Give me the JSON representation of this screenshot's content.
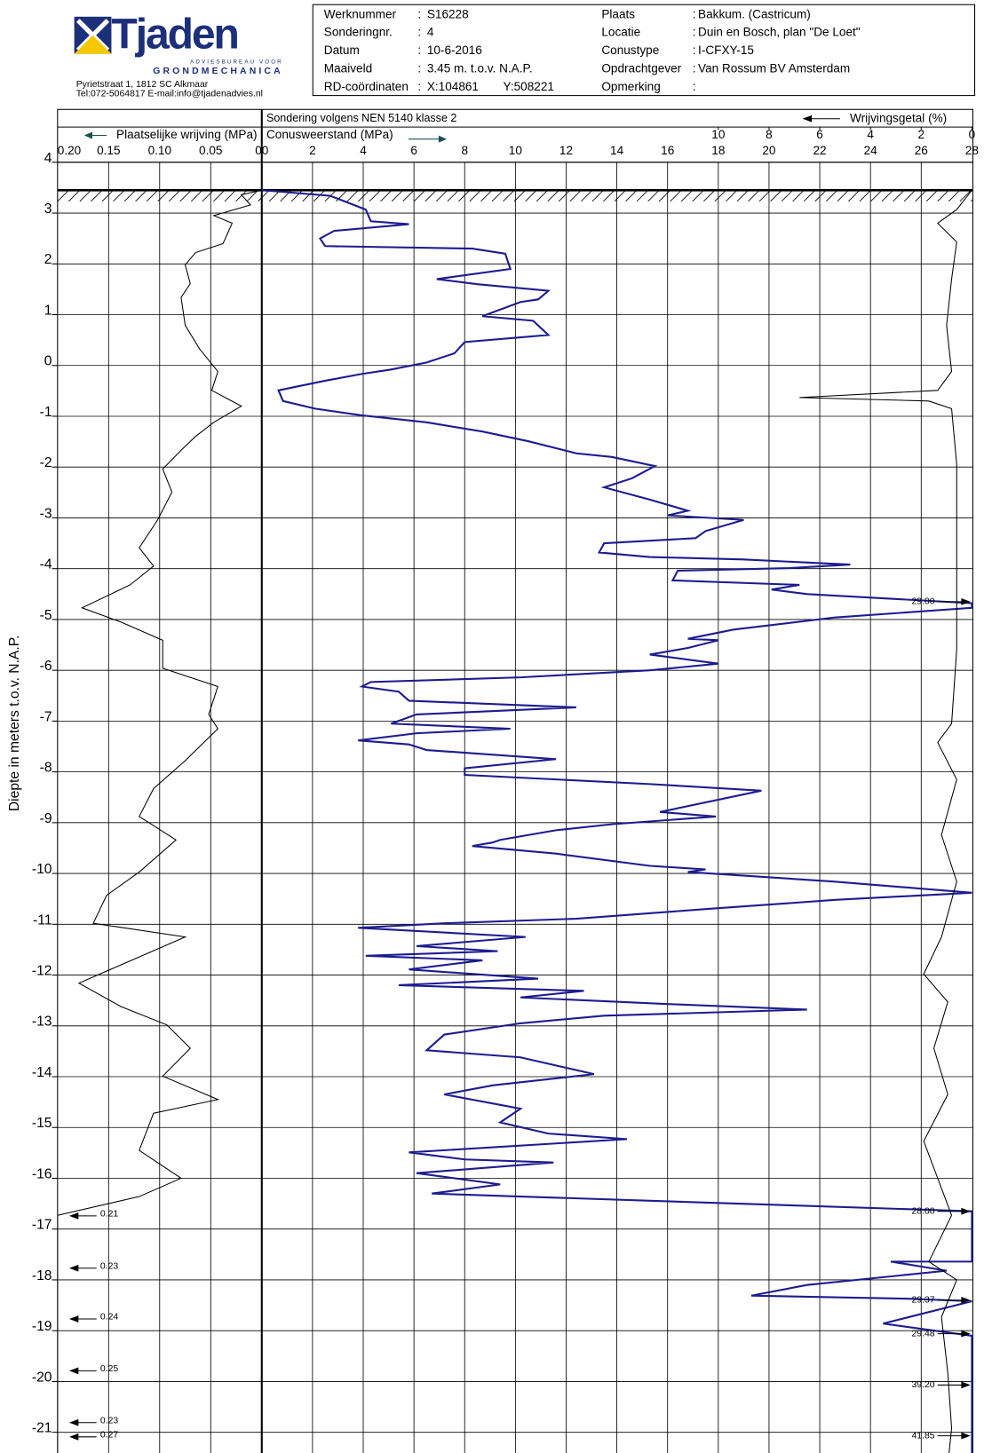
{
  "header": {
    "logo": "Tjaden",
    "tagline": "ADVIESBUREAU VOOR",
    "division": "GRONDMECHANICA",
    "address": "Pyrietstraat 1, 1812 SC Alkmaar",
    "contact": "Tel:072-5064817 E-mail:info@tjadenadvies.nl",
    "separator": ":",
    "fields": [
      {
        "label": "Werknummer",
        "value": "S16228"
      },
      {
        "label": "Sonderingnr.",
        "value": "4"
      },
      {
        "label": "Datum",
        "value": "10-6-2016"
      },
      {
        "label": "Maaiveld",
        "value": "3.45  m.  t.o.v. N.A.P."
      },
      {
        "label": "RD-coördinaten",
        "value": "X:104861",
        "value_y": "Y:508221"
      },
      {
        "label": "Plaats",
        "value": "Bakkum. (Castricum)"
      },
      {
        "label": "Locatie",
        "value": "Duin en Bosch, plan \"De Loet\""
      },
      {
        "label": "Conustype",
        "value": "I-CFXY-15"
      },
      {
        "label": "Opdrachtgever",
        "value": "Van Rossum BV Amsterdam"
      },
      {
        "label": "Opmerking"
      }
    ]
  },
  "chart_data": {
    "type": "line",
    "title": "Sondering volgens NEN 5140 klasse 2",
    "ylabel": "Diepte in meters t.o.v. N.A.P.",
    "ylim": [
      -21.7,
      4
    ],
    "yticks": [
      4,
      3,
      2,
      1,
      0,
      -1,
      -2,
      -3,
      -4,
      -5,
      -6,
      -7,
      -8,
      -9,
      -10,
      -11,
      -12,
      -13,
      -14,
      -15,
      -16,
      -17,
      -18,
      -19,
      -20,
      -21
    ],
    "grid": true,
    "ground_level": 3.45,
    "axes": {
      "friction": {
        "xlim": [
          0.2,
          0
        ],
        "xticks": [
          {
            "value": 0.2,
            "label": "0.20"
          },
          0.15,
          {
            "value": 0.1,
            "label": "0.10"
          },
          0.05,
          0
        ]
      },
      "cone": {
        "xlim": [
          0,
          28
        ],
        "xticks": [
          0,
          2,
          4,
          6,
          8,
          10,
          12,
          14,
          16,
          18,
          20,
          22,
          24,
          26,
          28
        ]
      },
      "ratio": {
        "xlim": [
          28,
          0
        ],
        "xticks": [
          10,
          8,
          6,
          4,
          2,
          0
        ]
      }
    },
    "series": [
      {
        "name": "Plaatselijke wrijving (MPa)",
        "axis": "friction",
        "color": "#000000",
        "values": [
          0,
          0.02,
          0.011,
          0.047,
          0.029,
          0.038,
          0.065,
          0.075,
          0.07,
          0.079,
          0.075,
          0.061,
          0.043,
          0.049,
          0.02,
          0.047,
          0.065,
          0.079,
          0.097,
          0.088,
          0.102,
          0.12,
          0.106,
          0.129,
          0.176,
          0.138,
          0.097,
          0.097,
          0.043,
          0.052,
          0.043,
          0.075,
          0.106,
          0.12,
          0.084,
          0.12,
          0.152,
          0.165,
          0.075,
          0.138,
          0.179,
          0.138,
          0.093,
          0.07,
          0.097,
          0.043,
          0.106,
          0.12,
          0.079,
          0.12,
          0.2,
          0.2
        ],
        "depth": [
          3.45,
          3.36,
          3.16,
          2.95,
          2.8,
          2.4,
          2.22,
          1.98,
          1.61,
          1.34,
          0.79,
          0.33,
          -0.12,
          -0.49,
          -0.8,
          -1.12,
          -1.4,
          -1.67,
          -2.04,
          -2.49,
          -3.04,
          -3.59,
          -3.95,
          -4.32,
          -4.77,
          -5.05,
          -5.41,
          -5.96,
          -6.32,
          -6.87,
          -7.15,
          -7.78,
          -8.33,
          -8.88,
          -9.34,
          -9.97,
          -10.43,
          -10.98,
          -11.25,
          -11.8,
          -12.16,
          -12.62,
          -12.98,
          -13.44,
          -13.99,
          -14.45,
          -14.72,
          -15.45,
          -16.0,
          -16.36,
          -16.73,
          -21.65
        ]
      },
      {
        "name": "Conusweerstand (MPa)",
        "axis": "cone",
        "color": "#1c1c8f",
        "values": [
          0,
          2.7,
          4.1,
          4.3,
          5.8,
          2.85,
          2.3,
          2.5,
          8.3,
          9.6,
          9.8,
          6.9,
          8.5,
          11.3,
          10.9,
          10.2,
          8.7,
          10.7,
          11.3,
          8.0,
          7.6,
          6.5,
          5.1,
          3.9,
          2.5,
          0.66,
          0.84,
          2.1,
          3.9,
          6.5,
          8.7,
          10.5,
          12.4,
          13.8,
          15.5,
          14.6,
          13.5,
          15.3,
          16.8,
          16.0,
          19.0,
          17.5,
          17.1,
          13.5,
          13.3,
          15.3,
          19.0,
          23.2,
          20.8,
          16.4,
          16.2,
          21.2,
          20.1,
          21.5,
          28,
          28,
          22.6,
          18.6,
          16.8,
          18.0,
          16.8,
          15.3,
          18.0,
          15.3,
          10.2,
          4.3,
          3.95,
          5.4,
          5.8,
          12.4,
          6.1,
          5.1,
          9.8,
          6.1,
          3.8,
          5.8,
          6.5,
          11.6,
          8.0,
          8.0,
          15.3,
          19.7,
          15.7,
          17.9,
          13.8,
          11.6,
          9.4,
          9.1,
          8.3,
          11.6,
          15.3,
          17.5,
          16.8,
          22.6,
          28,
          22.6,
          17.5,
          12.4,
          7.2,
          3.8,
          10.4,
          6.1,
          9.3,
          4.1,
          8.7,
          5.8,
          10.9,
          5.4,
          12.7,
          10.2,
          16.0,
          21.5,
          13.5,
          10.2,
          7.2,
          6.5,
          10.2,
          13.1,
          9.1,
          7.2,
          10.2,
          9.4,
          11.3,
          14.4,
          5.8,
          8.0,
          11.5,
          6.1,
          9.4,
          6.7,
          10.2,
          28,
          28,
          24.8,
          27.0,
          21.5,
          19.3,
          25.5,
          28,
          24.5,
          28,
          28
        ],
        "depth": [
          3.45,
          3.34,
          3.07,
          2.84,
          2.78,
          2.65,
          2.5,
          2.35,
          2.3,
          2.2,
          1.9,
          1.7,
          1.6,
          1.47,
          1.3,
          1.25,
          0.97,
          0.88,
          0.6,
          0.46,
          0.24,
          0.06,
          -0.08,
          -0.17,
          -0.3,
          -0.49,
          -0.7,
          -0.85,
          -0.98,
          -1.12,
          -1.3,
          -1.49,
          -1.73,
          -1.8,
          -1.98,
          -2.22,
          -2.4,
          -2.64,
          -2.86,
          -2.95,
          -3.04,
          -3.26,
          -3.4,
          -3.5,
          -3.68,
          -3.77,
          -3.82,
          -3.92,
          -3.99,
          -4.04,
          -4.23,
          -4.32,
          -4.41,
          -4.5,
          -4.68,
          -4.77,
          -4.96,
          -5.2,
          -5.38,
          -5.41,
          -5.56,
          -5.69,
          -5.87,
          -6.0,
          -6.14,
          -6.23,
          -6.32,
          -6.42,
          -6.6,
          -6.73,
          -6.87,
          -7.05,
          -7.15,
          -7.24,
          -7.38,
          -7.46,
          -7.57,
          -7.75,
          -7.93,
          -8.06,
          -8.24,
          -8.37,
          -8.79,
          -8.88,
          -9.03,
          -9.15,
          -9.34,
          -9.39,
          -9.46,
          -9.61,
          -9.85,
          -9.92,
          -9.97,
          -10.16,
          -10.38,
          -10.52,
          -10.7,
          -10.89,
          -10.98,
          -11.07,
          -11.25,
          -11.43,
          -11.53,
          -11.62,
          -11.71,
          -11.89,
          -12.07,
          -12.2,
          -12.31,
          -12.44,
          -12.57,
          -12.68,
          -12.8,
          -12.95,
          -13.17,
          -13.48,
          -13.62,
          -13.95,
          -14.17,
          -14.35,
          -14.63,
          -14.9,
          -15.12,
          -15.23,
          -15.49,
          -15.63,
          -15.69,
          -15.9,
          -16.12,
          -16.3,
          -16.36,
          -16.65,
          -17.64,
          -17.64,
          -17.82,
          -18.1,
          -18.31,
          -18.37,
          -18.42,
          -18.86,
          -19.1,
          -21.65
        ]
      },
      {
        "name": "Wrijvingsgetal (%)",
        "axis": "ratio",
        "color": "#000000",
        "values": [
          0,
          0.6,
          1.35,
          0.6,
          0.8,
          1.0,
          0.8,
          1.35,
          6.8,
          1.7,
          0.8,
          0.6,
          0.6,
          0.6,
          0.8,
          1.35,
          0.6,
          1.2,
          0.6,
          1.2,
          1.9,
          0.95,
          1.5,
          0.95,
          1.9,
          1.35,
          0.8,
          1.7,
          0.6,
          1.2,
          0.95,
          0.8,
          0.95
        ],
        "depth": [
          3.45,
          3.07,
          2.8,
          2.43,
          1.7,
          0.79,
          -0.12,
          -0.49,
          -0.63,
          -0.7,
          -0.85,
          -1.95,
          -3.77,
          -5.59,
          -7.05,
          -7.42,
          -8.15,
          -9.24,
          -10.16,
          -11.25,
          -11.98,
          -12.53,
          -13.44,
          -14.35,
          -15.27,
          -16.0,
          -16.73,
          -17.64,
          -18.0,
          -18.73,
          -19.83,
          -20.92,
          -21.65
        ]
      }
    ],
    "offscale_right": [
      {
        "depth": -4.65,
        "value": 29,
        "label": "29.00"
      },
      {
        "depth": -16.65,
        "value": 28,
        "label": "28.00"
      },
      {
        "depth": -18.4,
        "value": 29.37
      },
      {
        "depth": -19.06,
        "value": 29.48
      },
      {
        "depth": -20.07,
        "value": 39.2,
        "label": "39.20"
      },
      {
        "depth": -21.07,
        "value": 41.85
      }
    ],
    "offscale_left": [
      {
        "depth": -16.74,
        "value": 0.21
      },
      {
        "depth": -17.77,
        "value": 0.23
      },
      {
        "depth": -18.77,
        "value": 0.24
      },
      {
        "depth": -19.79,
        "value": 0.25
      },
      {
        "depth": -20.81,
        "value": 0.23
      },
      {
        "depth": -21.09,
        "value": 0.27
      }
    ]
  }
}
